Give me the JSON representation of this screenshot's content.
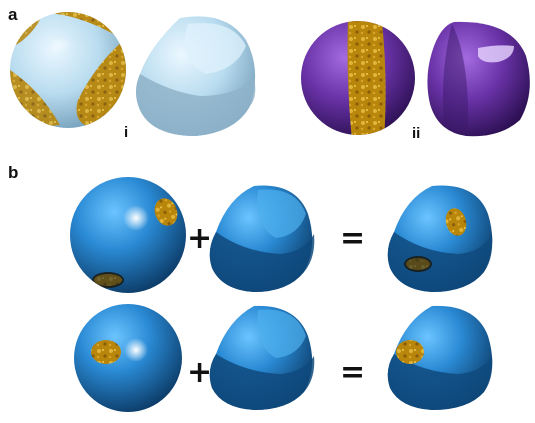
{
  "panels": {
    "a": {
      "label": "a",
      "sub_i": "i",
      "sub_ii": "ii"
    },
    "b": {
      "label": "b",
      "plus": "+",
      "equals": "="
    }
  },
  "colors": {
    "pale_blue": "#c8e6f5",
    "gold": "#c89a1e",
    "purple": "#5b2d8e",
    "blue": "#1f7fc6"
  }
}
